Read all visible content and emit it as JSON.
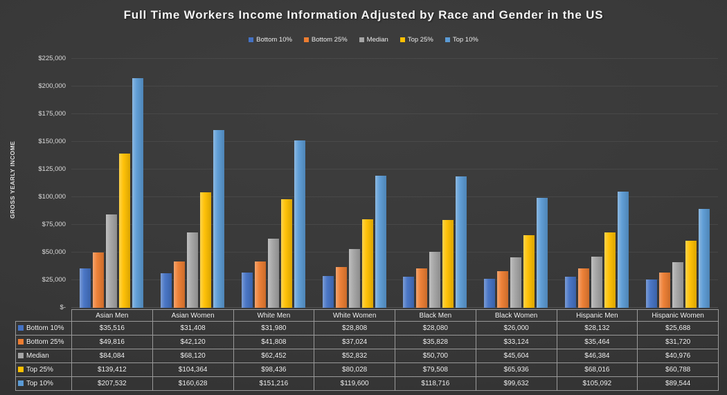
{
  "title": "Full Time Workers Income Information Adjusted by Race and Gender in the US",
  "y_axis": {
    "title": "GROSS YEARLY INCOME",
    "tick_labels": [
      "$-",
      "$25,000",
      "$50,000",
      "$75,000",
      "$100,000",
      "$125,000",
      "$150,000",
      "$175,000",
      "$200,000",
      "$225,000"
    ]
  },
  "colors": {
    "background": "#373737",
    "gridline": "#464646",
    "table_border": "#9a9a9a",
    "text": "#f2f2f2"
  },
  "chart_data": {
    "type": "bar",
    "title": "Full Time Workers Income Information Adjusted by Race and Gender in the US",
    "xlabel": "",
    "ylabel": "GROSS YEARLY INCOME",
    "ylim": [
      0,
      225000
    ],
    "y_tick_step": 25000,
    "grid": true,
    "legend_position": "top",
    "value_prefix": "$",
    "categories": [
      "Asian Men",
      "Asian Women",
      "White Men",
      "White Women",
      "Black Men",
      "Black Women",
      "Hispanic Men",
      "Hispanic Women"
    ],
    "series": [
      {
        "name": "Bottom 10%",
        "color": "#4472C4",
        "values": [
          35516,
          31408,
          31980,
          28808,
          28080,
          26000,
          28132,
          25688
        ]
      },
      {
        "name": "Bottom 25%",
        "color": "#ED7D31",
        "values": [
          49816,
          42120,
          41808,
          37024,
          35828,
          33124,
          35464,
          31720
        ]
      },
      {
        "name": "Median",
        "color": "#A5A5A5",
        "values": [
          84084,
          68120,
          62452,
          52832,
          50700,
          45604,
          46384,
          40976
        ]
      },
      {
        "name": "Top 25%",
        "color": "#FFC000",
        "values": [
          139412,
          104364,
          98436,
          80028,
          79508,
          65936,
          68016,
          60788
        ]
      },
      {
        "name": "Top 10%",
        "color": "#5B9BD5",
        "values": [
          207532,
          160628,
          151216,
          119600,
          118716,
          99632,
          105092,
          89544
        ]
      }
    ]
  }
}
